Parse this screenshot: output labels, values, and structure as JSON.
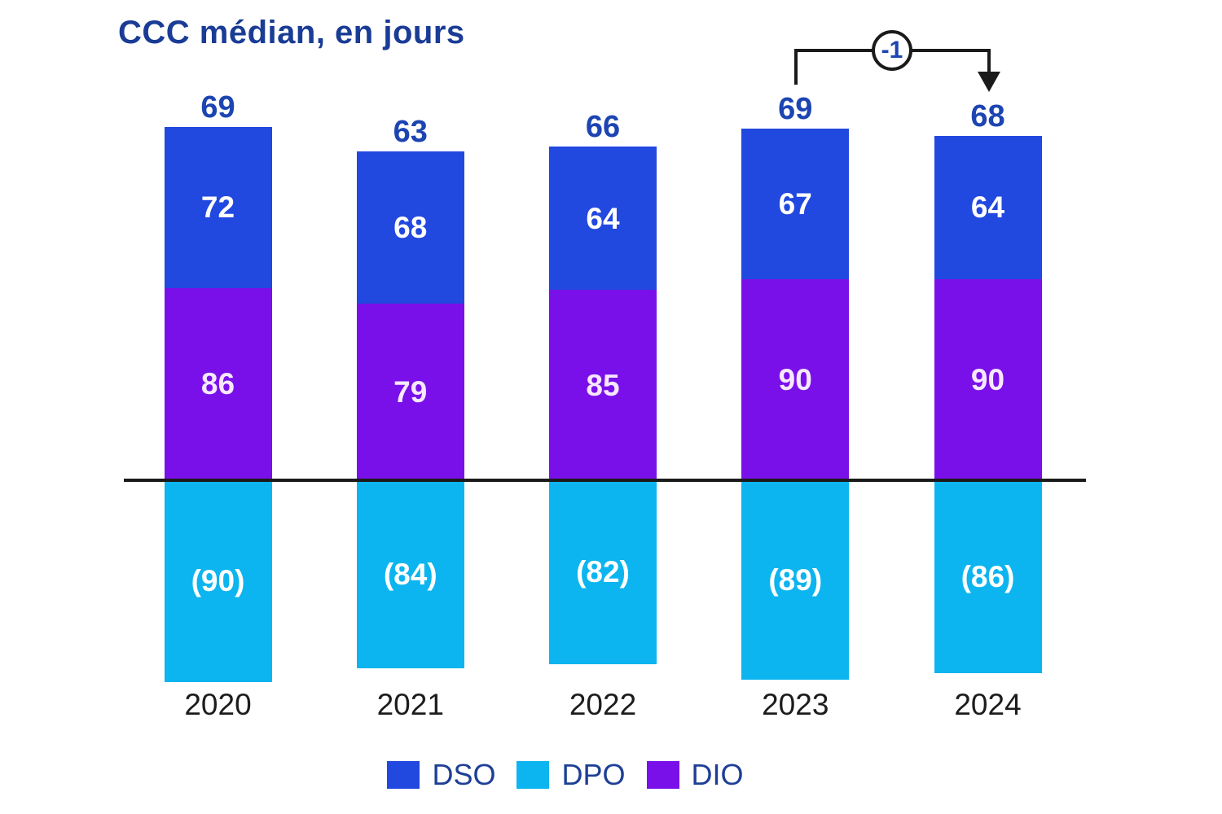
{
  "title": "CCC médian, en jours",
  "annotation": {
    "label": "-1",
    "between": [
      "2023",
      "2024"
    ]
  },
  "legend": {
    "items": [
      {
        "label": "DSO",
        "color": "#2148df"
      },
      {
        "label": "DPO",
        "color": "#0cb5ef"
      },
      {
        "label": "DIO",
        "color": "#7a10e9"
      }
    ]
  },
  "colors": {
    "dso": "#2148df",
    "dpo": "#0cb5ef",
    "dio": "#7a10e9",
    "title_text": "#1a3c96",
    "total_text": "#1d45b2",
    "year_text": "#1c1c1c",
    "axis_line": "#1a1a1a",
    "dio_label_text": "#f6e8ff",
    "segment_label_text": "#ffffff"
  },
  "chart_data": {
    "type": "bar",
    "stacked": true,
    "title": "CCC médian, en jours",
    "categories": [
      "2020",
      "2021",
      "2022",
      "2023",
      "2024"
    ],
    "series": [
      {
        "name": "DSO",
        "color": "#2148df",
        "values": [
          72,
          68,
          64,
          67,
          64
        ]
      },
      {
        "name": "DIO",
        "color": "#7a10e9",
        "values": [
          86,
          79,
          85,
          90,
          90
        ]
      },
      {
        "name": "DPO",
        "color": "#0cb5ef",
        "values": [
          -90,
          -84,
          -82,
          -89,
          -86
        ],
        "labels": [
          "(90)",
          "(84)",
          "(82)",
          "(89)",
          "(86)"
        ]
      }
    ],
    "totals": [
      69,
      63,
      66,
      69,
      68
    ],
    "baseline": 0,
    "grid": false,
    "legend_position": "bottom",
    "annotation": {
      "label": "-1",
      "between": [
        "2023",
        "2024"
      ]
    }
  }
}
